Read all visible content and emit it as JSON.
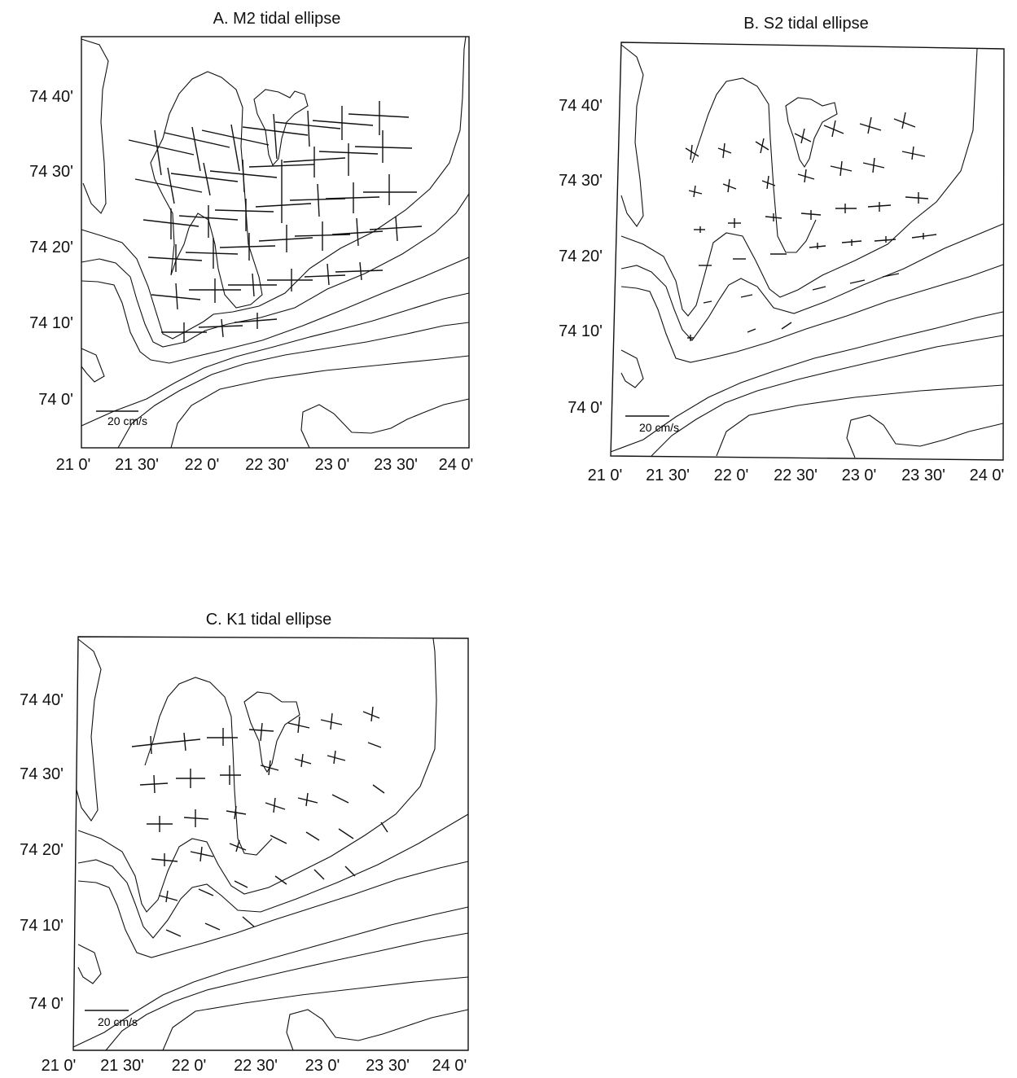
{
  "panels": [
    {
      "id": "A",
      "title": "A. M2 tidal ellipse",
      "y_ticks": [
        "74 40'",
        "74 30'",
        "74 20'",
        "74 10'",
        "74  0'"
      ],
      "x_ticks": [
        "21  0'",
        "21 30'",
        "22  0'",
        "22 30'",
        "23  0'",
        "23 30'",
        "24  0'"
      ],
      "scale_label": "20 cm/s"
    },
    {
      "id": "B",
      "title": "B. S2 tidal ellipse",
      "y_ticks": [
        "74 40'",
        "74 30'",
        "74 20'",
        "74 10'",
        "74  0'"
      ],
      "x_ticks": [
        "21  0'",
        "21 30'",
        "22  0'",
        "22 30'",
        "23  0'",
        "23 30'",
        "24  0'"
      ],
      "scale_label": "20 cm/s"
    },
    {
      "id": "C",
      "title": "C. K1 tidal ellipse",
      "y_ticks": [
        "74 40'",
        "74 30'",
        "74 20'",
        "74 10'",
        "74  0'"
      ],
      "x_ticks": [
        "21  0'",
        "21 30'",
        "22  0'",
        "22 30'",
        "23  0'",
        "23 30'",
        "24  0'"
      ],
      "scale_label": "20 cm/s"
    }
  ]
}
